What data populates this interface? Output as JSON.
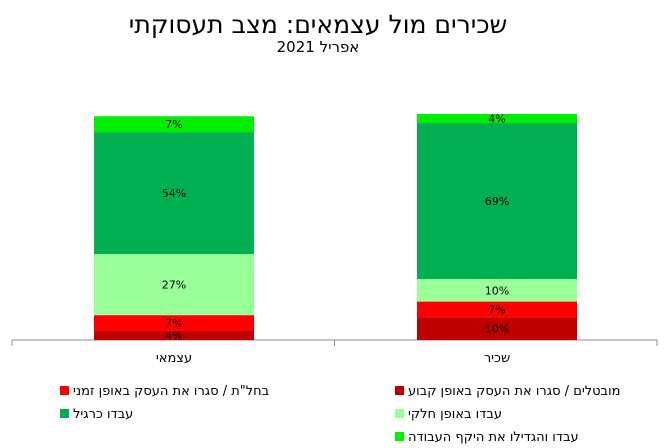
{
  "chart_data": {
    "type": "bar",
    "stacked": true,
    "title": "שכירים מול עצמאים: מצב תעסוקתי",
    "subtitle": "אפריל 2021",
    "categories": [
      "שכיר",
      "עצמאי"
    ],
    "series": [
      {
        "name": "מובטלים / סגרו את העסק באופן קבוע",
        "values": [
          10,
          4
        ],
        "color": "#C00000"
      },
      {
        "name": "בחל\"ת / סגרו את העסק באופן זמני",
        "values": [
          7,
          7
        ],
        "color": "#FF0000"
      },
      {
        "name": "עבדו באופן חלקי",
        "values": [
          10,
          27
        ],
        "color": "#99FF99"
      },
      {
        "name": "עבדו כרגיל",
        "values": [
          69,
          54
        ],
        "color": "#00B050"
      },
      {
        "name": "עבדו והגדילו את היקף העבודה",
        "values": [
          4,
          7
        ],
        "color": "#00EE00"
      }
    ],
    "value_suffix": "%",
    "ylim": [
      0,
      100
    ],
    "grid": false,
    "legend_position": "bottom"
  }
}
